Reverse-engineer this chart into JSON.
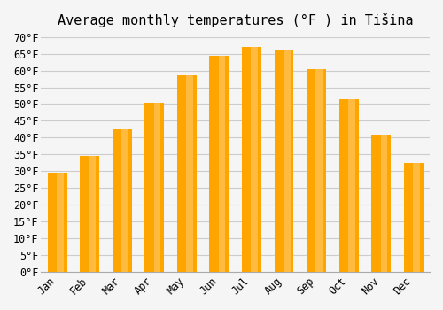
{
  "title": "Average monthly temperatures (°F ) in Tišina",
  "months": [
    "Jan",
    "Feb",
    "Mar",
    "Apr",
    "May",
    "Jun",
    "Jul",
    "Aug",
    "Sep",
    "Oct",
    "Nov",
    "Dec"
  ],
  "values": [
    29.5,
    34.5,
    42.5,
    50.5,
    58.5,
    64.5,
    67.0,
    66.0,
    60.5,
    51.5,
    41.0,
    32.5
  ],
  "bar_color": "#FFA500",
  "bar_color_light": "#FFD080",
  "ylim": [
    0,
    70
  ],
  "ytick_step": 5,
  "background_color": "#F5F5F5",
  "grid_color": "#CCCCCC",
  "title_fontsize": 11,
  "tick_fontsize": 8.5
}
